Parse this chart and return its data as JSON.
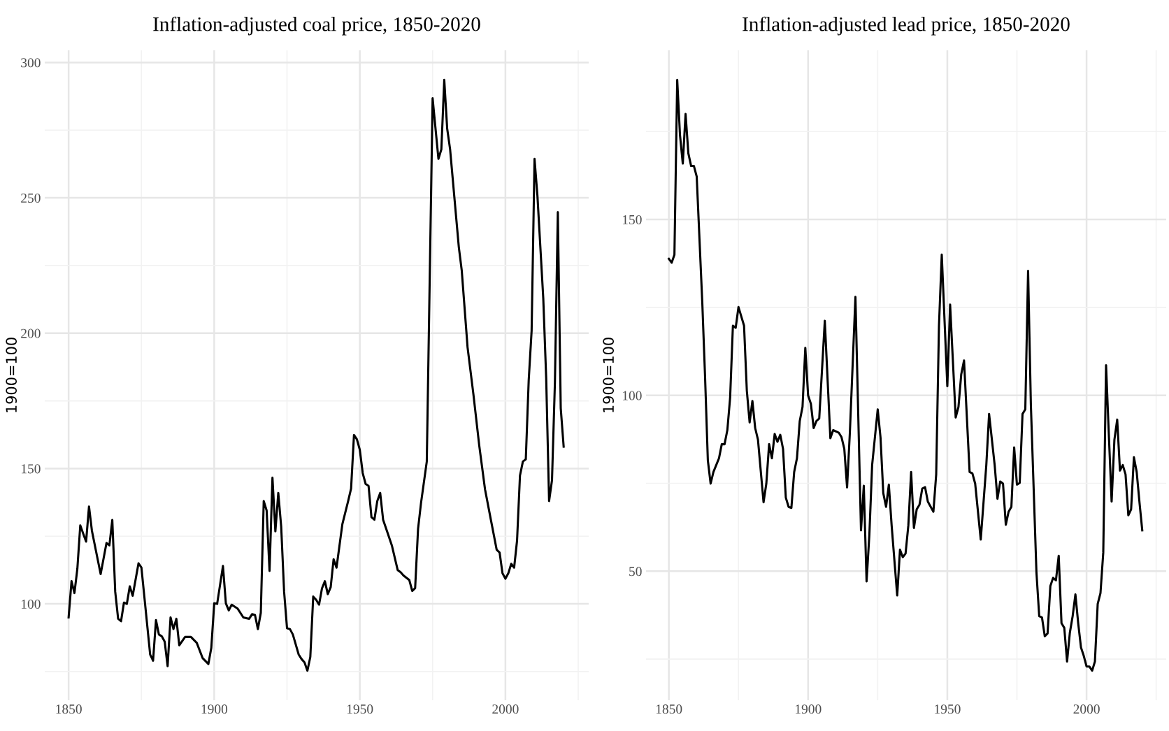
{
  "chart_data": [
    {
      "type": "line",
      "title": "Inflation-adjusted coal price, 1850-2020",
      "ylabel": "1900=100",
      "x": [
        1850,
        1851,
        1852,
        1853,
        1854,
        1855,
        1856,
        1857,
        1858,
        1861,
        1863,
        1864,
        1865,
        1866,
        1867,
        1868,
        1869,
        1870,
        1871,
        1872,
        1874,
        1875,
        1876,
        1878,
        1879,
        1880,
        1881,
        1882,
        1883,
        1884,
        1885,
        1886,
        1887,
        1888,
        1890,
        1892,
        1894,
        1896,
        1898,
        1899,
        1900,
        1901,
        1903,
        1904,
        1905,
        1906,
        1908,
        1910,
        1912,
        1913,
        1914,
        1915,
        1916,
        1917,
        1918,
        1919,
        1920,
        1921,
        1922,
        1923,
        1924,
        1925,
        1926,
        1927,
        1929,
        1930,
        1931,
        1932,
        1933,
        1934,
        1935,
        1936,
        1937,
        1938,
        1939,
        1940,
        1941,
        1942,
        1944,
        1946,
        1947,
        1948,
        1949,
        1950,
        1951,
        1952,
        1953,
        1954,
        1955,
        1956,
        1957,
        1958,
        1961,
        1963,
        1964,
        1965,
        1967,
        1968,
        1969,
        1970,
        1971,
        1973,
        1975,
        1977,
        1978,
        1979,
        1980,
        1981,
        1983,
        1984,
        1985,
        1987,
        1989,
        1991,
        1993,
        1995,
        1997,
        1998,
        1999,
        2000,
        2001,
        2002,
        2003,
        2004,
        2005,
        2006,
        2007,
        2008,
        2009,
        2010,
        2011,
        2013,
        2014,
        2015,
        2016,
        2017,
        2018,
        2019,
        2020
      ],
      "series": [
        {
          "color": "#000000",
          "values": [
            95,
            108.4,
            104,
            113,
            129,
            126,
            123,
            136,
            127,
            111,
            122.5,
            121.6,
            131,
            104.5,
            94.5,
            93.6,
            100.5,
            100,
            106.5,
            103,
            115,
            113.4,
            102.7,
            81.3,
            79,
            94,
            88.7,
            88,
            86,
            77,
            95,
            90.7,
            94.5,
            84.7,
            87.8,
            87.8,
            85.6,
            80,
            77.8,
            83.8,
            100.2,
            100,
            114,
            100.2,
            97.6,
            99.7,
            98.3,
            95,
            94.5,
            96.2,
            95.9,
            90.7,
            96.7,
            138,
            134.5,
            112.2,
            146.6,
            126.8,
            141,
            128.5,
            104.5,
            91,
            90.7,
            88.7,
            81.3,
            79.6,
            78.4,
            75.3,
            80.4,
            102.7,
            101.5,
            99.7,
            105.7,
            108.4,
            103.6,
            106.2,
            116.5,
            113.4,
            129.4,
            138,
            142.6,
            162.4,
            160.8,
            156.9,
            148.3,
            144.3,
            143.6,
            132,
            131.1,
            138,
            141,
            131.1,
            121.6,
            112.5,
            111.7,
            110.5,
            108.8,
            104.8,
            105.8,
            127.7,
            137.1,
            152.6,
            286.8,
            264.4,
            267.9,
            293.6,
            275.6,
            268,
            243.8,
            231.8,
            223.2,
            194.8,
            177.5,
            158.6,
            142.3,
            131.1,
            120,
            119,
            111.3,
            109.3,
            111.3,
            114.8,
            113.4,
            123.4,
            147.4,
            152.6,
            153.4,
            182.6,
            200.9,
            264.4,
            250.7,
            212.9,
            183.5,
            138,
            145.7,
            181.8,
            244.7,
            172.3,
            158.1
          ]
        }
      ],
      "xlim": [
        1841.8,
        2028.6
      ],
      "ylim": [
        64.4,
        304.5
      ],
      "xticks": [
        1850,
        {
          "value": 1875,
          "label": null
        },
        1900,
        {
          "value": 1925,
          "label": null
        },
        1950,
        {
          "value": 1975,
          "label": null
        },
        2000,
        {
          "value": 2025,
          "label": null
        }
      ],
      "yticks": [
        {
          "value": 75,
          "label": null
        },
        100,
        {
          "value": 125,
          "label": null
        },
        150,
        {
          "value": 175,
          "label": null
        },
        200,
        {
          "value": 225,
          "label": null
        },
        250,
        {
          "value": 275,
          "label": null
        },
        300
      ],
      "grid": true,
      "line_style": "solid",
      "marker": "none"
    },
    {
      "type": "line",
      "title": "Inflation-adjusted lead price, 1850-2020",
      "ylabel": "1900=100",
      "x": [
        1850,
        1851,
        1852,
        1853,
        1854,
        1855,
        1856,
        1857,
        1858,
        1859,
        1860,
        1862,
        1863,
        1864,
        1865,
        1866,
        1868,
        1869,
        1870,
        1871,
        1872,
        1873,
        1874,
        1875,
        1877,
        1878,
        1879,
        1880,
        1881,
        1882,
        1884,
        1885,
        1886,
        1887,
        1888,
        1889,
        1890,
        1891,
        1892,
        1893,
        1894,
        1895,
        1896,
        1897,
        1898,
        1899,
        1900,
        1901,
        1902,
        1903,
        1904,
        1906,
        1908,
        1909,
        1911,
        1912,
        1913,
        1914,
        1915,
        1917,
        1919,
        1920,
        1921,
        1922,
        1923,
        1925,
        1926,
        1927,
        1928,
        1929,
        1930,
        1932,
        1933,
        1934,
        1935,
        1936,
        1937,
        1938,
        1939,
        1940,
        1941,
        1942,
        1943,
        1945,
        1946,
        1947,
        1948,
        1950,
        1951,
        1953,
        1954,
        1955,
        1956,
        1958,
        1959,
        1960,
        1962,
        1964,
        1965,
        1967,
        1968,
        1969,
        1970,
        1971,
        1972,
        1973,
        1974,
        1975,
        1976,
        1977,
        1978,
        1979,
        1980,
        1981,
        1982,
        1983,
        1984,
        1985,
        1986,
        1987,
        1988,
        1989,
        1990,
        1991,
        1992,
        1993,
        1994,
        1995,
        1996,
        1997,
        1998,
        1999,
        2000,
        2001,
        2002,
        2003,
        2004,
        2005,
        2006,
        2007,
        2008,
        2009,
        2010,
        2011,
        2012,
        2013,
        2014,
        2015,
        2016,
        2017,
        2018,
        2019,
        2020
      ],
      "series": [
        {
          "color": "#000000",
          "values": [
            138.8,
            137.7,
            140,
            189.7,
            174,
            165.9,
            180,
            168.8,
            165.2,
            165.2,
            162.2,
            126.5,
            105.3,
            81.5,
            74.9,
            78.2,
            82.1,
            86.1,
            86.1,
            90.1,
            99.3,
            119.8,
            119.2,
            125.1,
            119.8,
            101.3,
            92.3,
            98.4,
            90.7,
            87.4,
            69.6,
            74.9,
            86.1,
            82.1,
            89,
            86.8,
            88.8,
            84.8,
            70.9,
            68.3,
            68,
            78.2,
            82.1,
            92.7,
            96.7,
            113.5,
            100,
            97.6,
            90.7,
            92.7,
            93.4,
            121.2,
            87.8,
            90.1,
            89.4,
            88.1,
            84.8,
            73.8,
            89.4,
            128,
            61.6,
            74.3,
            47.1,
            60.3,
            80.2,
            96,
            88.1,
            72.2,
            68.3,
            74.6,
            63,
            43.1,
            56.1,
            54,
            55,
            63,
            78.2,
            62.3,
            67.6,
            68.9,
            73.5,
            73.9,
            69.8,
            66.9,
            77.5,
            119.8,
            140,
            102.6,
            125.8,
            93.7,
            96.7,
            106,
            109.9,
            78.2,
            77.8,
            74.9,
            59,
            80.2,
            94.7,
            80.2,
            70.6,
            75.5,
            74.9,
            63.2,
            66.9,
            68.3,
            85.2,
            74.6,
            75.1,
            94.7,
            96,
            135.4,
            97.4,
            73.5,
            49.7,
            37.2,
            36.8,
            31.5,
            32.3,
            45.8,
            48.1,
            47.4,
            54.4,
            35.2,
            33.9,
            24.3,
            32.5,
            37.2,
            43.4,
            35.2,
            28.3,
            25.9,
            22.9,
            22.9,
            21.7,
            24.3,
            40.7,
            43.8,
            55.3,
            108.6,
            88.8,
            69.8,
            87.4,
            93.1,
            78.6,
            80.2,
            77.5,
            65.9,
            67.6,
            82.4,
            78.2,
            69.6,
            61.6
          ]
        }
      ],
      "xlim": [
        1841.8,
        2028.6
      ],
      "ylim": [
        13.3,
        198.1
      ],
      "xticks": [
        1850,
        {
          "value": 1875,
          "label": null
        },
        1900,
        {
          "value": 1925,
          "label": null
        },
        1950,
        {
          "value": 1975,
          "label": null
        },
        2000,
        {
          "value": 2025,
          "label": null
        }
      ],
      "yticks": [
        {
          "value": 25,
          "label": null
        },
        50,
        {
          "value": 75,
          "label": null
        },
        100,
        {
          "value": 125,
          "label": null
        },
        150,
        {
          "value": 175,
          "label": null
        }
      ],
      "grid": true,
      "line_style": "solid",
      "marker": "none"
    }
  ]
}
